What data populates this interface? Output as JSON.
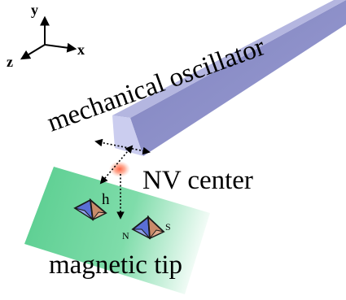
{
  "axes": {
    "y_label": "y",
    "x_label": "x",
    "z_label": "z"
  },
  "labels": {
    "oscillator": "mechanical oscillator",
    "nv_center": "NV center",
    "tip": "magnetic tip",
    "height": "h",
    "north": "N",
    "south": "S"
  },
  "colors": {
    "oscillator_side": "#8a8dc4",
    "oscillator_top": "#b4b6e0",
    "oscillator_end": "#c9cbec",
    "tip_plate_start": "#5dcf92",
    "tip_plate_end": "#ffffff",
    "nv_glow": "#ff5a3a"
  }
}
